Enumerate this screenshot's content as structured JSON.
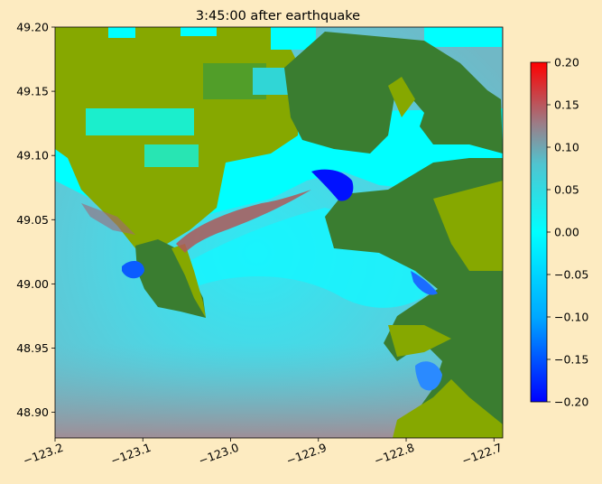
{
  "chart_data": {
    "type": "heatmap",
    "title": "3:45:00 after earthquake",
    "xlim": [
      -123.2,
      -122.69
    ],
    "ylim": [
      48.88,
      49.2
    ],
    "x_ticks": [
      -123.2,
      -123.1,
      -123.0,
      -122.9,
      -122.8,
      -122.7
    ],
    "x_tick_labels": [
      "−123.2",
      "−123.1",
      "−123.0",
      "−122.9",
      "−122.8",
      "−122.7"
    ],
    "y_ticks": [
      48.9,
      48.95,
      49.0,
      49.05,
      49.1,
      49.15,
      49.2
    ],
    "y_tick_labels": [
      "48.90",
      "48.95",
      "49.00",
      "49.05",
      "49.10",
      "49.15",
      "49.20"
    ],
    "colorbar": {
      "range": [
        -0.2,
        0.2
      ],
      "ticks": [
        -0.2,
        -0.15,
        -0.1,
        -0.05,
        0.0,
        0.05,
        0.1,
        0.15,
        0.2
      ],
      "tick_labels": [
        "−0.20",
        "−0.15",
        "−0.10",
        "−0.05",
        "0.00",
        "0.05",
        "0.10",
        "0.15",
        "0.20"
      ],
      "colors": [
        "#0000ff",
        "#00aaff",
        "#00ffff",
        "#59b4c2",
        "#a0707a",
        "#ff0000"
      ]
    },
    "grid": false,
    "colors": {
      "land_low": "#86a800",
      "land_high": "#3a7d30",
      "water_zero": "#00ffff",
      "water_mid": "#40d6e6",
      "neg": "#0011ff",
      "pos": "#b05858"
    }
  }
}
